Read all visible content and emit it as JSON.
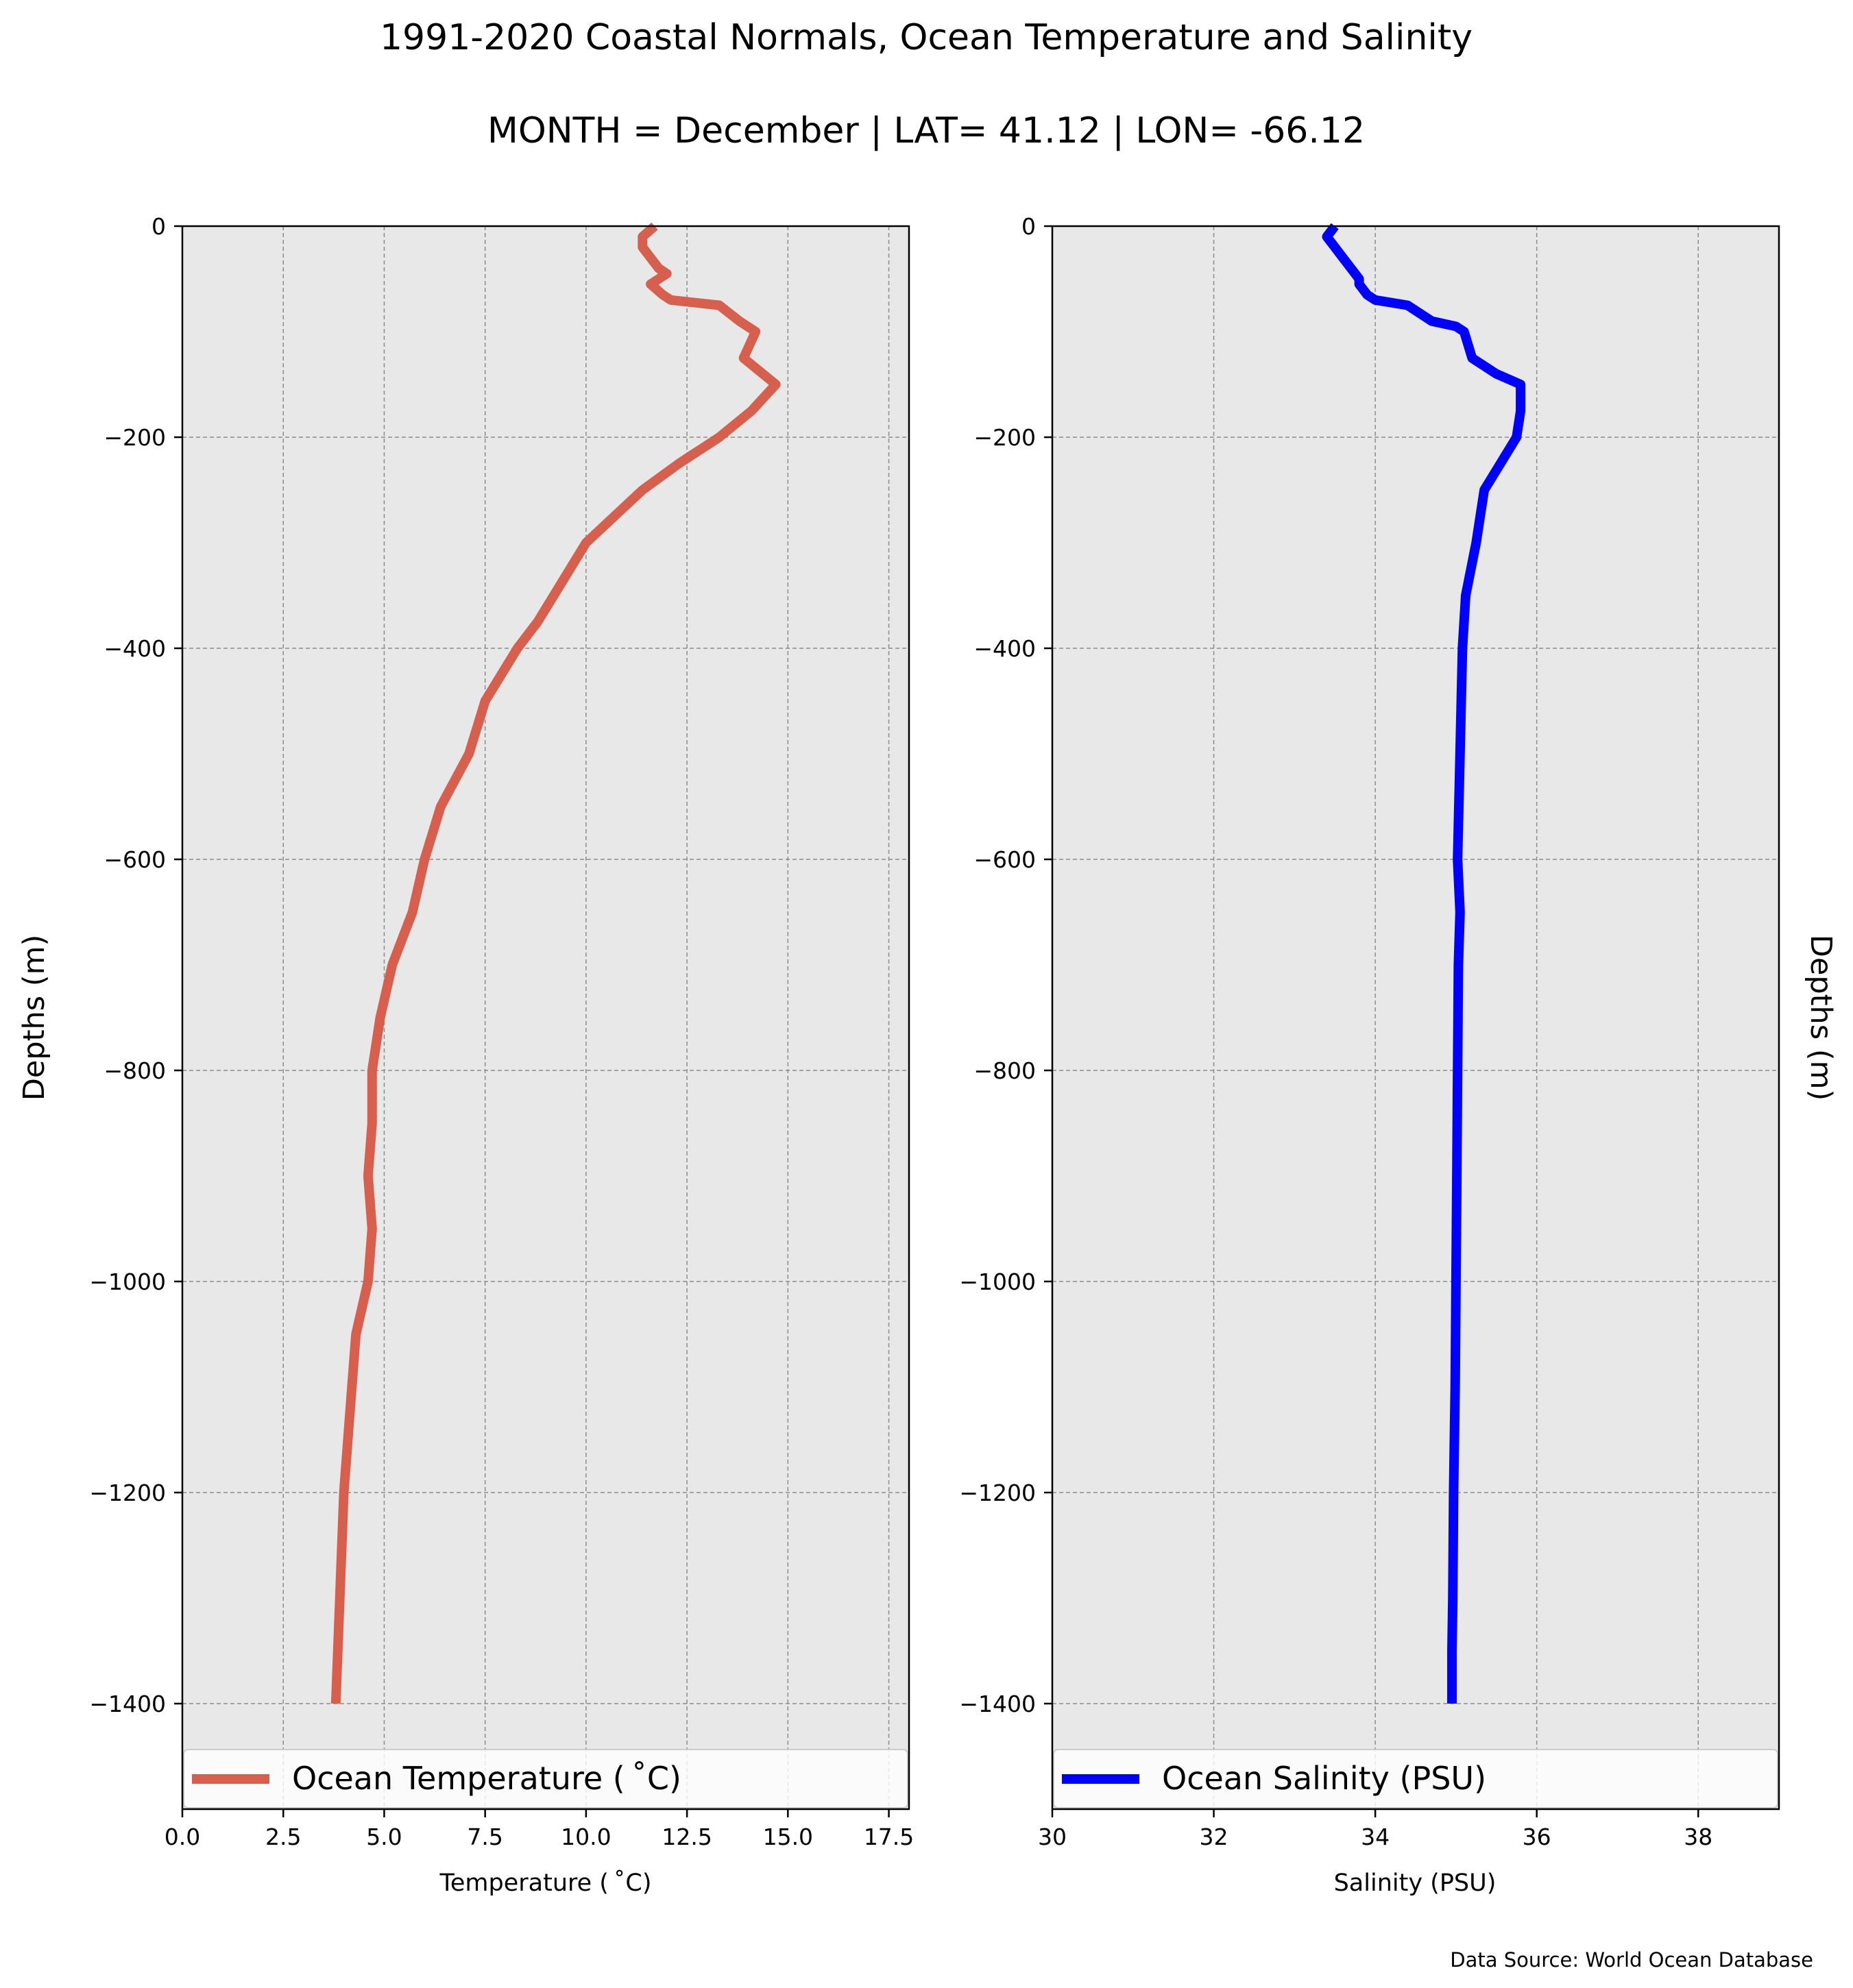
{
  "figure": {
    "title": "1991-2020 Coastal Normals, Ocean Temperature and Salinity",
    "subtitle": "MONTH = December | LAT= 41.12 | LON= -66.12",
    "source": "Data Source: World Ocean Database",
    "background": "#e8e8e8",
    "grid_color": "#8c8c8c"
  },
  "chart_data": [
    {
      "type": "line",
      "xlabel": "Temperature ($^\\circ$C)",
      "xlabel_display": "Temperature ( ˚C)",
      "ylabel": "Depths (m)",
      "xlim": [
        0,
        18
      ],
      "ylim": [
        -1500,
        0
      ],
      "xticks": [
        "0.0",
        "2.5",
        "5.0",
        "7.5",
        "10.0",
        "12.5",
        "15.0",
        "17.5"
      ],
      "xtick_values": [
        0,
        2.5,
        5,
        7.5,
        10,
        12.5,
        15,
        17.5
      ],
      "yticks": [
        "0",
        "−200",
        "−400",
        "−600",
        "−800",
        "−1000",
        "−1200",
        "−1400"
      ],
      "ytick_values": [
        0,
        -200,
        -400,
        -600,
        -800,
        -1000,
        -1200,
        -1400
      ],
      "grid": true,
      "legend_position": "bottom",
      "series": [
        {
          "name": "Ocean Temperature ($^\\circ$C)",
          "label_display": "Ocean Temperature ( ˚C)",
          "color": "#d6604d",
          "x": [
            11.7,
            11.4,
            11.4,
            11.6,
            11.8,
            12.0,
            11.6,
            11.9,
            12.1,
            13.3,
            13.8,
            14.2,
            13.9,
            14.7,
            14.1,
            13.3,
            12.3,
            11.4,
            10.7,
            10.0,
            9.2,
            8.8,
            8.3,
            7.9,
            7.5,
            7.1,
            6.4,
            6.0,
            5.7,
            5.2,
            4.9,
            4.7,
            4.7,
            4.6,
            4.7,
            4.6,
            4.3,
            4.2,
            4.1,
            4.0,
            3.9,
            3.8
          ],
          "y": [
            0,
            -10,
            -20,
            -30,
            -40,
            -45,
            -55,
            -65,
            -70,
            -75,
            -90,
            -100,
            -125,
            -150,
            -175,
            -200,
            -225,
            -250,
            -275,
            -300,
            -350,
            -375,
            -400,
            -425,
            -450,
            -500,
            -550,
            -600,
            -650,
            -700,
            -750,
            -800,
            -850,
            -900,
            -950,
            -1000,
            -1050,
            -1100,
            -1150,
            -1200,
            -1300,
            -1400
          ]
        }
      ]
    },
    {
      "type": "line",
      "xlabel": "Salinity (PSU)",
      "xlabel_display": "Salinity (PSU)",
      "ylabel": "Depths (m)",
      "xlim": [
        30,
        39
      ],
      "ylim": [
        -1500,
        0
      ],
      "xticks": [
        "30",
        "32",
        "34",
        "36",
        "38"
      ],
      "xtick_values": [
        30,
        32,
        34,
        36,
        38
      ],
      "yticks": [
        "0",
        "−200",
        "−400",
        "−600",
        "−800",
        "−1000",
        "−1200",
        "−1400"
      ],
      "ytick_values": [
        0,
        -200,
        -400,
        -600,
        -800,
        -1000,
        -1200,
        -1400
      ],
      "grid": true,
      "legend_position": "bottom",
      "series": [
        {
          "name": "Ocean Salinity (PSU)",
          "label_display": "Ocean Salinity (PSU)",
          "color": "#0000ff",
          "x": [
            33.5,
            33.4,
            33.5,
            33.6,
            33.7,
            33.8,
            33.8,
            33.9,
            34.0,
            34.4,
            34.7,
            35.0,
            35.1,
            35.2,
            35.5,
            35.8,
            35.8,
            35.75,
            35.55,
            35.35,
            35.25,
            35.12,
            35.08,
            35.05,
            35.02,
            35.05,
            35.03,
            35.02,
            35.01,
            35.0,
            34.99,
            34.98,
            34.97,
            34.96,
            34.95,
            34.95
          ],
          "y": [
            0,
            -10,
            -20,
            -30,
            -40,
            -50,
            -55,
            -65,
            -70,
            -75,
            -90,
            -95,
            -100,
            -125,
            -140,
            -150,
            -175,
            -200,
            -225,
            -250,
            -300,
            -350,
            -400,
            -500,
            -600,
            -650,
            -700,
            -800,
            -900,
            -1000,
            -1100,
            -1150,
            -1200,
            -1300,
            -1350,
            -1400
          ]
        }
      ]
    }
  ]
}
